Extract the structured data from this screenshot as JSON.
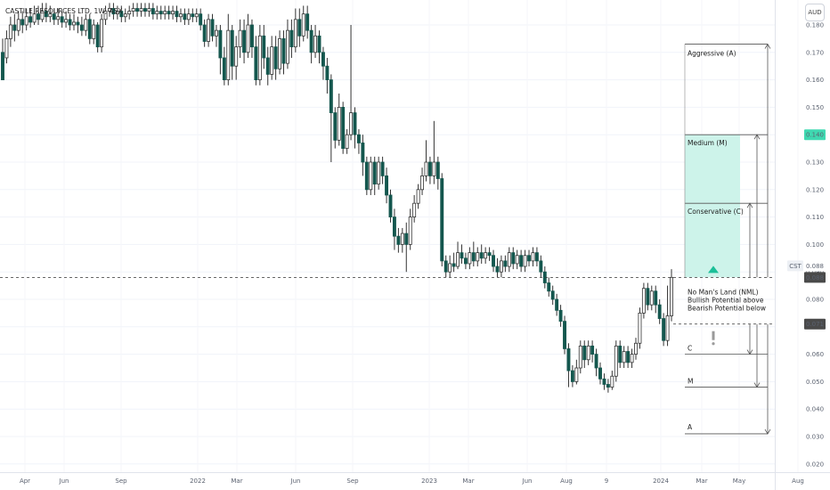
{
  "header": {
    "title": "CASTILE RESOURCES LTD, 1W, ASX"
  },
  "currency": "AUD",
  "colors": {
    "up": "#ffffff",
    "down": "#14574e",
    "wick": "#333333",
    "target_zone": "#cdf3ea",
    "badge_green": "#3fd9b1",
    "badge_dark": "#4a4a4a"
  },
  "price_tags": [
    {
      "label": "CST",
      "value": "0.088",
      "style": "light"
    },
    {
      "label": "",
      "value": "0.088",
      "style": "dark"
    },
    {
      "label": "",
      "value": "0.140",
      "style": "green"
    },
    {
      "label": "",
      "value": "0.071",
      "style": "dark"
    }
  ],
  "zones": {
    "aggressive": "Aggressive (A)",
    "medium": "Medium (M)",
    "conservative": "Conservative (C)",
    "nml_line1": "No Man's Land (NML)",
    "nml_line2": "Bullish Potential above",
    "nml_line3": "Bearish Potential below",
    "down_c": "C",
    "down_m": "M",
    "down_a": "A"
  },
  "chart_data": {
    "type": "candlestick",
    "title": "CASTILE RESOURCES LTD, 1W, ASX",
    "timeframe": "1W",
    "y_axis": {
      "ticks": [
        "0.180",
        "0.170",
        "0.160",
        "0.150",
        "0.140",
        "0.130",
        "0.120",
        "0.110",
        "0.100",
        "0.090",
        "0.080",
        "0.070",
        "0.060",
        "0.050",
        "0.040",
        "0.030",
        "0.020"
      ],
      "range": [
        0.02,
        0.184
      ]
    },
    "x_axis": {
      "labels": [
        "Apr",
        "Jun",
        "Sep",
        "2022",
        "Mar",
        "Jun",
        "Sep",
        "2023",
        "Mar",
        "Jun",
        "Aug",
        "9",
        "2024",
        "Mar",
        "May",
        "Aug"
      ]
    },
    "levels": {
      "aggressive_target": 0.173,
      "medium_target": 0.14,
      "conservative_target": 0.115,
      "nml_top": 0.088,
      "nml_bottom": 0.071,
      "down_conservative": 0.06,
      "down_medium": 0.048,
      "down_aggressive": 0.031
    },
    "current_price": 0.088,
    "candles": [
      [
        0.17,
        0.16,
        0.175,
        0.16
      ],
      [
        0.168,
        0.175,
        0.178,
        0.166
      ],
      [
        0.175,
        0.18,
        0.183,
        0.172
      ],
      [
        0.18,
        0.178,
        0.184,
        0.174
      ],
      [
        0.178,
        0.182,
        0.185,
        0.176
      ],
      [
        0.182,
        0.18,
        0.185,
        0.177
      ],
      [
        0.18,
        0.183,
        0.186,
        0.178
      ],
      [
        0.183,
        0.181,
        0.186,
        0.179
      ],
      [
        0.181,
        0.184,
        0.187,
        0.18
      ],
      [
        0.184,
        0.182,
        0.187,
        0.18
      ],
      [
        0.182,
        0.185,
        0.188,
        0.181
      ],
      [
        0.185,
        0.183,
        0.188,
        0.181
      ],
      [
        0.183,
        0.184,
        0.187,
        0.181
      ],
      [
        0.184,
        0.182,
        0.186,
        0.18
      ],
      [
        0.182,
        0.183,
        0.186,
        0.18
      ],
      [
        0.183,
        0.181,
        0.185,
        0.179
      ],
      [
        0.181,
        0.182,
        0.185,
        0.179
      ],
      [
        0.182,
        0.18,
        0.184,
        0.178
      ],
      [
        0.18,
        0.181,
        0.184,
        0.178
      ],
      [
        0.181,
        0.18,
        0.183,
        0.177
      ],
      [
        0.18,
        0.178,
        0.183,
        0.176
      ],
      [
        0.178,
        0.182,
        0.184,
        0.176
      ],
      [
        0.182,
        0.175,
        0.184,
        0.173
      ],
      [
        0.175,
        0.18,
        0.182,
        0.173
      ],
      [
        0.18,
        0.172,
        0.181,
        0.17
      ],
      [
        0.172,
        0.182,
        0.184,
        0.17
      ],
      [
        0.182,
        0.185,
        0.187,
        0.18
      ],
      [
        0.185,
        0.186,
        0.188,
        0.183
      ],
      [
        0.186,
        0.184,
        0.188,
        0.182
      ],
      [
        0.184,
        0.185,
        0.187,
        0.182
      ],
      [
        0.185,
        0.183,
        0.187,
        0.181
      ],
      [
        0.183,
        0.184,
        0.186,
        0.181
      ],
      [
        0.184,
        0.185,
        0.187,
        0.182
      ],
      [
        0.185,
        0.186,
        0.188,
        0.183
      ],
      [
        0.186,
        0.185,
        0.188,
        0.183
      ],
      [
        0.185,
        0.186,
        0.188,
        0.183
      ],
      [
        0.186,
        0.185,
        0.188,
        0.183
      ],
      [
        0.185,
        0.186,
        0.188,
        0.183
      ],
      [
        0.186,
        0.184,
        0.188,
        0.182
      ],
      [
        0.184,
        0.185,
        0.187,
        0.182
      ],
      [
        0.185,
        0.184,
        0.187,
        0.182
      ],
      [
        0.184,
        0.185,
        0.187,
        0.182
      ],
      [
        0.185,
        0.184,
        0.187,
        0.182
      ],
      [
        0.184,
        0.185,
        0.187,
        0.182
      ],
      [
        0.185,
        0.183,
        0.187,
        0.181
      ],
      [
        0.183,
        0.184,
        0.186,
        0.181
      ],
      [
        0.184,
        0.182,
        0.186,
        0.18
      ],
      [
        0.182,
        0.184,
        0.186,
        0.18
      ],
      [
        0.184,
        0.183,
        0.186,
        0.181
      ],
      [
        0.183,
        0.184,
        0.186,
        0.181
      ],
      [
        0.184,
        0.18,
        0.186,
        0.178
      ],
      [
        0.18,
        0.174,
        0.182,
        0.172
      ],
      [
        0.174,
        0.182,
        0.184,
        0.172
      ],
      [
        0.182,
        0.176,
        0.184,
        0.174
      ],
      [
        0.176,
        0.178,
        0.18,
        0.172
      ],
      [
        0.178,
        0.168,
        0.18,
        0.162
      ],
      [
        0.168,
        0.16,
        0.172,
        0.158
      ],
      [
        0.16,
        0.178,
        0.184,
        0.158
      ],
      [
        0.178,
        0.165,
        0.18,
        0.16
      ],
      [
        0.165,
        0.172,
        0.176,
        0.16
      ],
      [
        0.172,
        0.178,
        0.182,
        0.168
      ],
      [
        0.178,
        0.17,
        0.182,
        0.166
      ],
      [
        0.17,
        0.18,
        0.184,
        0.168
      ],
      [
        0.18,
        0.172,
        0.182,
        0.168
      ],
      [
        0.172,
        0.16,
        0.176,
        0.158
      ],
      [
        0.16,
        0.176,
        0.18,
        0.158
      ],
      [
        0.176,
        0.168,
        0.18,
        0.164
      ],
      [
        0.168,
        0.162,
        0.172,
        0.158
      ],
      [
        0.162,
        0.172,
        0.176,
        0.16
      ],
      [
        0.172,
        0.164,
        0.176,
        0.16
      ],
      [
        0.164,
        0.175,
        0.178,
        0.162
      ],
      [
        0.175,
        0.166,
        0.178,
        0.162
      ],
      [
        0.166,
        0.178,
        0.182,
        0.164
      ],
      [
        0.178,
        0.172,
        0.182,
        0.168
      ],
      [
        0.172,
        0.182,
        0.186,
        0.17
      ],
      [
        0.182,
        0.176,
        0.186,
        0.172
      ],
      [
        0.176,
        0.184,
        0.187,
        0.174
      ],
      [
        0.184,
        0.178,
        0.187,
        0.175
      ],
      [
        0.178,
        0.17,
        0.18,
        0.166
      ],
      [
        0.17,
        0.176,
        0.18,
        0.168
      ],
      [
        0.176,
        0.17,
        0.178,
        0.166
      ],
      [
        0.17,
        0.165,
        0.172,
        0.16
      ],
      [
        0.165,
        0.16,
        0.168,
        0.155
      ],
      [
        0.16,
        0.148,
        0.162,
        0.13
      ],
      [
        0.148,
        0.138,
        0.15,
        0.135
      ],
      [
        0.138,
        0.15,
        0.155,
        0.136
      ],
      [
        0.15,
        0.135,
        0.152,
        0.133
      ],
      [
        0.135,
        0.14,
        0.142,
        0.133
      ],
      [
        0.14,
        0.148,
        0.18,
        0.138
      ],
      [
        0.148,
        0.14,
        0.15,
        0.135
      ],
      [
        0.14,
        0.137,
        0.142,
        0.133
      ],
      [
        0.137,
        0.13,
        0.14,
        0.125
      ],
      [
        0.13,
        0.12,
        0.132,
        0.118
      ],
      [
        0.12,
        0.13,
        0.132,
        0.118
      ],
      [
        0.13,
        0.122,
        0.132,
        0.118
      ],
      [
        0.122,
        0.13,
        0.132,
        0.12
      ],
      [
        0.13,
        0.125,
        0.132,
        0.122
      ],
      [
        0.125,
        0.118,
        0.128,
        0.115
      ],
      [
        0.118,
        0.11,
        0.12,
        0.108
      ],
      [
        0.11,
        0.103,
        0.113,
        0.098
      ],
      [
        0.103,
        0.1,
        0.106,
        0.097
      ],
      [
        0.1,
        0.104,
        0.106,
        0.097
      ],
      [
        0.104,
        0.1,
        0.108,
        0.09
      ],
      [
        0.1,
        0.11,
        0.113,
        0.098
      ],
      [
        0.11,
        0.115,
        0.118,
        0.108
      ],
      [
        0.115,
        0.12,
        0.122,
        0.113
      ],
      [
        0.12,
        0.125,
        0.128,
        0.118
      ],
      [
        0.125,
        0.13,
        0.138,
        0.123
      ],
      [
        0.13,
        0.125,
        0.132,
        0.122
      ],
      [
        0.125,
        0.13,
        0.145,
        0.122
      ],
      [
        0.13,
        0.124,
        0.132,
        0.12
      ],
      [
        0.124,
        0.094,
        0.126,
        0.092
      ],
      [
        0.094,
        0.09,
        0.096,
        0.088
      ],
      [
        0.09,
        0.093,
        0.096,
        0.088
      ],
      [
        0.093,
        0.092,
        0.097,
        0.09
      ],
      [
        0.092,
        0.097,
        0.101,
        0.091
      ],
      [
        0.097,
        0.095,
        0.1,
        0.093
      ],
      [
        0.095,
        0.093,
        0.097,
        0.091
      ],
      [
        0.093,
        0.097,
        0.099,
        0.091
      ],
      [
        0.097,
        0.094,
        0.101,
        0.092
      ],
      [
        0.094,
        0.097,
        0.099,
        0.092
      ],
      [
        0.097,
        0.095,
        0.1,
        0.093
      ],
      [
        0.095,
        0.097,
        0.099,
        0.093
      ],
      [
        0.097,
        0.096,
        0.099,
        0.094
      ],
      [
        0.096,
        0.092,
        0.098,
        0.09
      ],
      [
        0.092,
        0.09,
        0.095,
        0.088
      ],
      [
        0.09,
        0.094,
        0.096,
        0.088
      ],
      [
        0.094,
        0.092,
        0.096,
        0.09
      ],
      [
        0.092,
        0.097,
        0.099,
        0.09
      ],
      [
        0.097,
        0.093,
        0.099,
        0.091
      ],
      [
        0.093,
        0.096,
        0.098,
        0.091
      ],
      [
        0.096,
        0.092,
        0.098,
        0.09
      ],
      [
        0.092,
        0.096,
        0.098,
        0.09
      ],
      [
        0.096,
        0.094,
        0.098,
        0.092
      ],
      [
        0.094,
        0.097,
        0.099,
        0.092
      ],
      [
        0.097,
        0.094,
        0.099,
        0.092
      ],
      [
        0.094,
        0.09,
        0.096,
        0.088
      ],
      [
        0.09,
        0.086,
        0.092,
        0.084
      ],
      [
        0.086,
        0.083,
        0.088,
        0.081
      ],
      [
        0.083,
        0.08,
        0.085,
        0.078
      ],
      [
        0.08,
        0.076,
        0.082,
        0.074
      ],
      [
        0.076,
        0.072,
        0.078,
        0.07
      ],
      [
        0.072,
        0.062,
        0.074,
        0.06
      ],
      [
        0.062,
        0.054,
        0.064,
        0.048
      ],
      [
        0.054,
        0.05,
        0.056,
        0.048
      ],
      [
        0.05,
        0.055,
        0.058,
        0.049
      ],
      [
        0.055,
        0.063,
        0.065,
        0.053
      ],
      [
        0.063,
        0.058,
        0.065,
        0.055
      ],
      [
        0.058,
        0.063,
        0.065,
        0.056
      ],
      [
        0.063,
        0.06,
        0.065,
        0.057
      ],
      [
        0.06,
        0.055,
        0.062,
        0.052
      ],
      [
        0.055,
        0.051,
        0.057,
        0.049
      ],
      [
        0.051,
        0.049,
        0.053,
        0.047
      ],
      [
        0.049,
        0.048,
        0.051,
        0.046
      ],
      [
        0.048,
        0.052,
        0.054,
        0.047
      ],
      [
        0.052,
        0.063,
        0.065,
        0.05
      ],
      [
        0.063,
        0.057,
        0.065,
        0.055
      ],
      [
        0.057,
        0.061,
        0.063,
        0.055
      ],
      [
        0.061,
        0.057,
        0.063,
        0.055
      ],
      [
        0.057,
        0.06,
        0.062,
        0.055
      ],
      [
        0.06,
        0.064,
        0.066,
        0.058
      ],
      [
        0.064,
        0.075,
        0.077,
        0.062
      ],
      [
        0.075,
        0.084,
        0.086,
        0.073
      ],
      [
        0.084,
        0.078,
        0.086,
        0.076
      ],
      [
        0.078,
        0.083,
        0.085,
        0.076
      ],
      [
        0.083,
        0.078,
        0.085,
        0.075
      ],
      [
        0.078,
        0.073,
        0.08,
        0.071
      ],
      [
        0.073,
        0.065,
        0.075,
        0.063
      ],
      [
        0.065,
        0.074,
        0.085,
        0.063
      ],
      [
        0.074,
        0.088,
        0.091,
        0.072
      ]
    ]
  }
}
